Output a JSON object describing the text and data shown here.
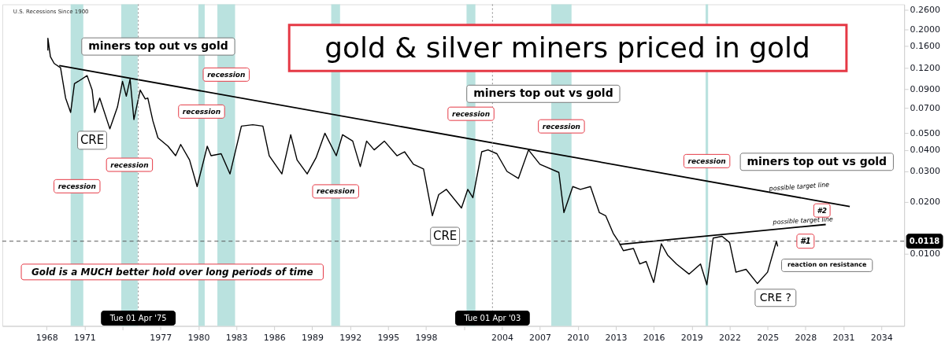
{
  "chart_data": {
    "type": "line",
    "title": "gold & silver miners priced in gold",
    "log": "y",
    "xlim": [
      1964.5,
      2035.8
    ],
    "xticks": [
      1968,
      1971,
      {
        "value": 1974,
        "label": null
      },
      1977,
      1980,
      1983,
      1986,
      1989,
      1992,
      1995,
      1998,
      {
        "value": 2001,
        "label": null
      },
      2004,
      2007,
      2010,
      2013,
      2016,
      2019,
      2022,
      2025,
      2028,
      2031,
      2034
    ],
    "ylim": [
      0.0038,
      0.28
    ],
    "yticks": [
      {
        "value": 0.01,
        "label": "0.0100"
      },
      {
        "value": 0.02,
        "label": "0.0200"
      },
      {
        "value": 0.03,
        "label": "0.0300"
      },
      {
        "value": 0.04,
        "label": "0.0400"
      },
      {
        "value": 0.05,
        "label": "0.0500"
      },
      {
        "value": 0.07,
        "label": "0.0700"
      },
      {
        "value": 0.09,
        "label": "0.0900"
      },
      {
        "value": 0.12,
        "label": "0.1200"
      },
      {
        "value": 0.16,
        "label": "0.1600"
      },
      {
        "value": 0.2,
        "label": "0.2000"
      },
      {
        "value": 0.26,
        "label": "0.2600"
      }
    ],
    "series": [
      {
        "color": "#000000",
        "line_style": "solid",
        "x": [
          1968.1,
          1968.1,
          1968.3,
          1968.6,
          1969.1,
          1969.5,
          1969.9,
          1970.2,
          1970.5,
          1971.2,
          1971.6,
          1971.8,
          1972.2,
          1973.0,
          1973.6,
          1974.0,
          1974.3,
          1974.6,
          1974.9,
          1975.4,
          1975.8,
          1976.0,
          1976.4,
          1976.8,
          1977.6,
          1978.2,
          1978.6,
          1979.3,
          1979.9,
          1980.7,
          1981.0,
          1981.8,
          1982.5,
          1983.4,
          1984.3,
          1985.1,
          1985.6,
          1986.6,
          1987.3,
          1987.8,
          1988.6,
          1989.3,
          1990.0,
          1990.9,
          1991.4,
          1992.2,
          1992.8,
          1993.3,
          1993.9,
          1994.7,
          1995.7,
          1996.3,
          1997.0,
          1997.8,
          1998.5,
          1999.0,
          1999.6,
          2000.8,
          2001.3,
          2001.7,
          2002.4,
          2002.9,
          2003.6,
          2004.4,
          2005.3,
          2006.1,
          2007.0,
          2008.5,
          2008.9,
          2009.6,
          2010.2,
          2011.0,
          2011.7,
          2012.2,
          2012.8,
          2013.2,
          2013.6,
          2014.4,
          2014.9,
          2015.4,
          2016.0,
          2016.6,
          2017.1,
          2017.8,
          2018.8,
          2019.7,
          2020.2,
          2020.7,
          2021.4,
          2022.0,
          2022.5,
          2023.3,
          2024.2,
          2025.0,
          2025.7,
          2025.8
        ],
        "values": [
          0.151,
          0.178,
          0.139,
          0.127,
          0.12,
          0.08,
          0.066,
          0.097,
          0.1,
          0.108,
          0.089,
          0.066,
          0.08,
          0.053,
          0.071,
          0.1,
          0.082,
          0.103,
          0.06,
          0.089,
          0.079,
          0.08,
          0.059,
          0.047,
          0.042,
          0.037,
          0.043,
          0.035,
          0.0245,
          0.042,
          0.037,
          0.038,
          0.029,
          0.055,
          0.056,
          0.055,
          0.037,
          0.029,
          0.049,
          0.035,
          0.029,
          0.036,
          0.05,
          0.037,
          0.049,
          0.045,
          0.032,
          0.045,
          0.04,
          0.045,
          0.037,
          0.039,
          0.033,
          0.031,
          0.0166,
          0.022,
          0.0236,
          0.0184,
          0.0236,
          0.0211,
          0.039,
          0.04,
          0.038,
          0.03,
          0.0273,
          0.04,
          0.033,
          0.0296,
          0.0173,
          0.0245,
          0.0236,
          0.0245,
          0.0173,
          0.0166,
          0.0131,
          0.0118,
          0.0104,
          0.0107,
          0.0087,
          0.009,
          0.0068,
          0.0114,
          0.0098,
          0.0087,
          0.0076,
          0.0087,
          0.0066,
          0.0123,
          0.0126,
          0.0116,
          0.0078,
          0.0081,
          0.0067,
          0.0078,
          0.0118,
          0.011
        ]
      },
      {
        "type": "line",
        "line_style": "solid",
        "color": "#000000",
        "x": [
          1969.0,
          2031.5
        ],
        "values": [
          0.1234,
          0.01875
        ]
      },
      {
        "type": "line",
        "line_style": "solid",
        "color": "#000000",
        "x": [
          2013.3,
          2029.6
        ],
        "values": [
          0.0113,
          0.01475
        ]
      }
    ],
    "bands": [
      {
        "axis": "x",
        "from": 1969.9,
        "to": 1970.9,
        "label": "recession",
        "color": "#b2dfdb"
      },
      {
        "axis": "x",
        "from": 1973.9,
        "to": 1975.2,
        "label": "recession",
        "color": "#b2dfdb"
      },
      {
        "axis": "x",
        "from": 1980.0,
        "to": 1980.5,
        "label": "recession",
        "color": "#b2dfdb"
      },
      {
        "axis": "x",
        "from": 1981.5,
        "to": 1982.9,
        "label": "recession",
        "color": "#b2dfdb"
      },
      {
        "axis": "x",
        "from": 1990.5,
        "to": 1991.2,
        "label": "recession",
        "color": "#b2dfdb"
      },
      {
        "axis": "x",
        "from": 2001.2,
        "to": 2001.9,
        "label": "recession",
        "color": "#b2dfdb"
      },
      {
        "axis": "x",
        "from": 2007.9,
        "to": 2009.5,
        "label": "recession",
        "color": "#b2dfdb"
      },
      {
        "axis": "x",
        "from": 2020.1,
        "to": 2020.3,
        "label": "recession",
        "color": "#b2dfdb"
      }
    ],
    "ref_lines": [
      {
        "axis": "x",
        "value": 1975.25,
        "label": "Tue 01 Apr '75",
        "color": "#888888",
        "line_style": "dotted"
      },
      {
        "axis": "x",
        "value": 2003.25,
        "label": "Tue 01 Apr '03",
        "color": "#888888",
        "line_style": "dotted"
      },
      {
        "axis": "y",
        "value": 0.0118,
        "label": "0.0118",
        "color": "#555555",
        "line_style": "dashed"
      }
    ],
    "annotations": [
      {
        "text": "CRE",
        "x": 1971.6,
        "y": 0.0455
      },
      {
        "text": "CRE",
        "x": 1999.5,
        "y": 0.0126
      },
      {
        "text": "possible target line",
        "x": 2027.5,
        "y": 0.0226
      },
      {
        "text": "possible target line",
        "x": 2027.8,
        "y": 0.0148
      },
      {
        "text": "#2",
        "x": 2029.3,
        "y": 0.0178
      },
      {
        "text": "#1",
        "x": 2028.0,
        "y": 0.0118
      },
      "miners top out vs gold",
      "miners top out vs gold",
      "miners top out vs gold",
      "reaction on resistance",
      "CRE ?",
      "Gold is a MUCH better hold over long periods of time",
      "U.S. Recessions Since 1900"
    ]
  }
}
